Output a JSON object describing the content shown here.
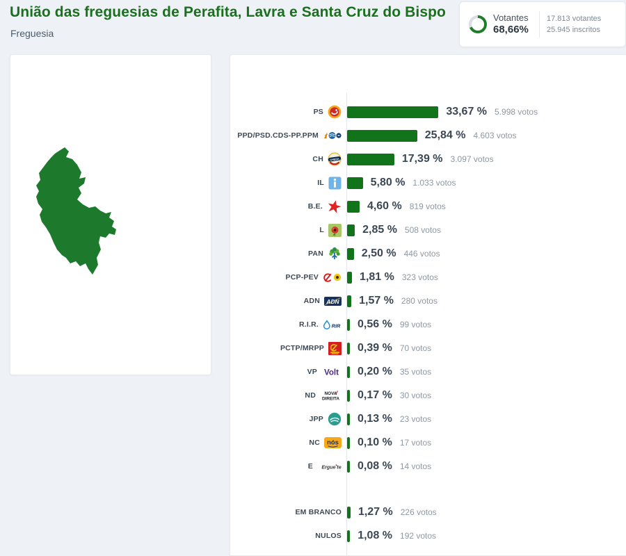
{
  "header": {
    "title": "União das freguesias de Perafita, Lavra e Santa Cruz do Bispo",
    "subtitle": "Freguesia"
  },
  "turnout": {
    "label": "Votantes",
    "percent_label": "68,66%",
    "percent_value": 68.66,
    "voters_line": "17.813 votantes",
    "registered_line": "25.945 inscritos",
    "ring_color": "#1f7d2a",
    "ring_track_color": "#d9dee4"
  },
  "map": {
    "region_name": "União das freguesias de Perafita, Lavra e Santa Cruz do Bispo",
    "region_color": "#1d7a2c"
  },
  "colors": {
    "title_green": "#19701d",
    "bar_green": "#11741a",
    "page_background": "#eef1f6"
  },
  "chart_data": {
    "type": "bar",
    "orientation": "horizontal",
    "value_unit": "percent of votes",
    "xlim": [
      0,
      35
    ],
    "grid": false,
    "title": "",
    "categories": [
      "PS",
      "PPD/PSD.CDS-PP.PPM",
      "CH",
      "IL",
      "B.E.",
      "L",
      "PAN",
      "PCP-PEV",
      "ADN",
      "R.I.R.",
      "PCTP/MRPP",
      "VP",
      "ND",
      "JPP",
      "NC",
      "E",
      "EM BRANCO",
      "NULOS"
    ],
    "values": [
      33.67,
      25.84,
      17.39,
      5.8,
      4.6,
      2.85,
      2.5,
      1.81,
      1.57,
      0.56,
      0.39,
      0.2,
      0.17,
      0.13,
      0.1,
      0.08,
      1.27,
      1.08
    ],
    "series": [
      {
        "party": "PS",
        "logo": "ps",
        "percent_label": "33,67 %",
        "value": 33.67,
        "votes_label": "5.998 votos"
      },
      {
        "party": "PPD/PSD.CDS-PP.PPM",
        "logo": "psd-cds-ppm-coalition",
        "percent_label": "25,84 %",
        "value": 25.84,
        "votes_label": "4.603 votos"
      },
      {
        "party": "CH",
        "logo": "chega",
        "percent_label": "17,39 %",
        "value": 17.39,
        "votes_label": "3.097 votos"
      },
      {
        "party": "IL",
        "logo": "iniciativa-liberal",
        "percent_label": "5,80 %",
        "value": 5.8,
        "votes_label": "1.033 votos"
      },
      {
        "party": "B.E.",
        "logo": "bloco-esquerda",
        "percent_label": "4,60 %",
        "value": 4.6,
        "votes_label": "819 votos"
      },
      {
        "party": "L",
        "logo": "livre",
        "percent_label": "2,85 %",
        "value": 2.85,
        "votes_label": "508 votos"
      },
      {
        "party": "PAN",
        "logo": "pan",
        "percent_label": "2,50 %",
        "value": 2.5,
        "votes_label": "446 votos"
      },
      {
        "party": "PCP-PEV",
        "logo": "pcp-pev",
        "percent_label": "1,81 %",
        "value": 1.81,
        "votes_label": "323 votos"
      },
      {
        "party": "ADN",
        "logo": "adn",
        "percent_label": "1,57 %",
        "value": 1.57,
        "votes_label": "280 votos"
      },
      {
        "party": "R.I.R.",
        "logo": "rir",
        "percent_label": "0,56 %",
        "value": 0.56,
        "votes_label": "99 votos"
      },
      {
        "party": "PCTP/MRPP",
        "logo": "pctp-mrpp",
        "percent_label": "0,39 %",
        "value": 0.39,
        "votes_label": "70 votos"
      },
      {
        "party": "VP",
        "logo": "volt",
        "percent_label": "0,20 %",
        "value": 0.2,
        "votes_label": "35 votos"
      },
      {
        "party": "ND",
        "logo": "nova-direita",
        "percent_label": "0,17 %",
        "value": 0.17,
        "votes_label": "30 votos"
      },
      {
        "party": "JPP",
        "logo": "jpp",
        "percent_label": "0,13 %",
        "value": 0.13,
        "votes_label": "23 votos"
      },
      {
        "party": "NC",
        "logo": "nos-cidadaos",
        "percent_label": "0,10 %",
        "value": 0.1,
        "votes_label": "17 votos"
      },
      {
        "party": "E",
        "logo": "ergue-te",
        "percent_label": "0,08 %",
        "value": 0.08,
        "votes_label": "14 votos"
      }
    ],
    "special_rows": [
      {
        "party": "EM BRANCO",
        "percent_label": "1,27 %",
        "value": 1.27,
        "votes_label": "226 votos"
      },
      {
        "party": "NULOS",
        "percent_label": "1,08 %",
        "value": 1.08,
        "votes_label": "192 votos"
      }
    ],
    "bar_color": "#11741a"
  }
}
